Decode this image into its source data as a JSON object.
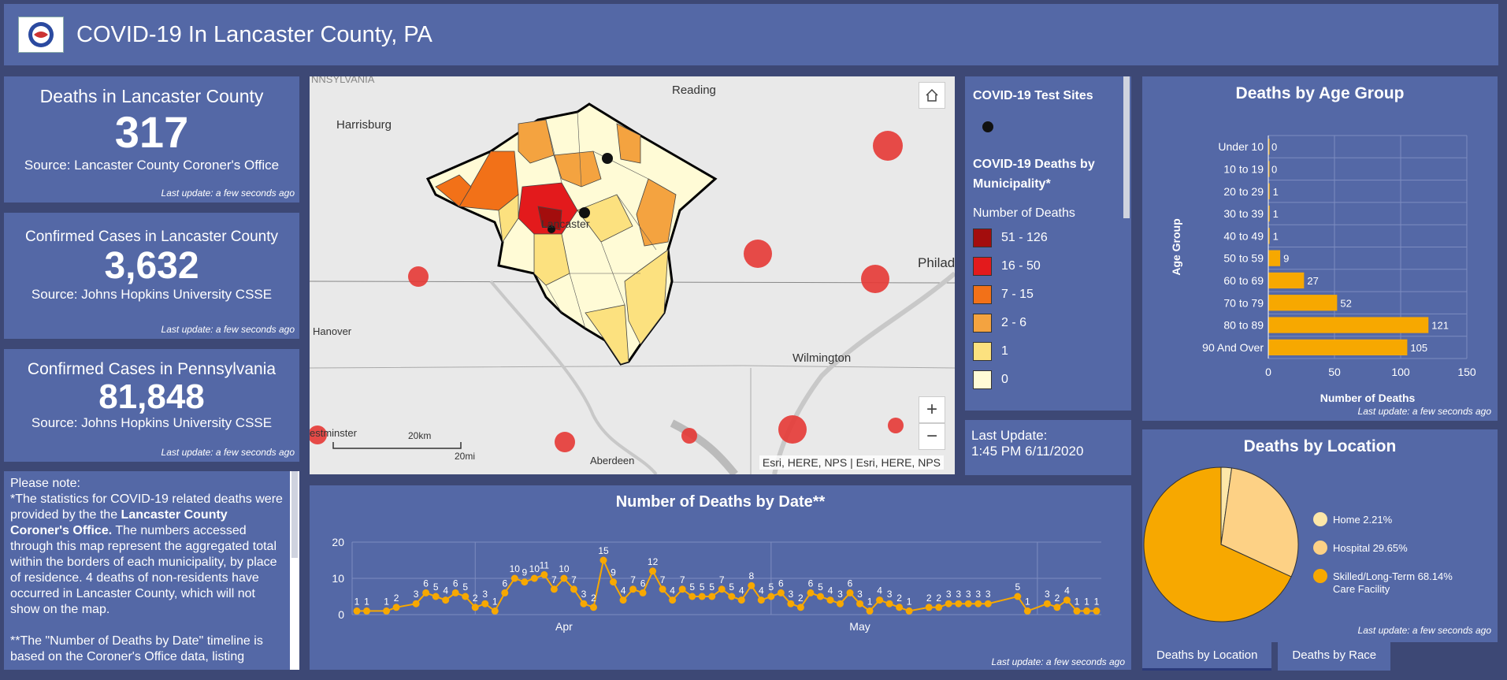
{
  "header": {
    "title": "COVID-19 In Lancaster County, PA"
  },
  "indicators": [
    {
      "title": "Deaths in Lancaster County",
      "value": "317",
      "source": "Source: Lancaster County Coroner's Office",
      "updated": "Last update: a few seconds ago"
    },
    {
      "title": "Confirmed Cases in Lancaster County",
      "value": "3,632",
      "source": "Source: Johns Hopkins University CSSE",
      "updated": "Last update: a few seconds ago"
    },
    {
      "title": "Confirmed Cases in Pennsylvania",
      "value": "81,848",
      "source": "Source: Johns Hopkins University CSSE",
      "updated": "Last update: a few seconds ago"
    }
  ],
  "note": {
    "line1": "Please note:",
    "p1a": "*The statistics for COVID-19 related deaths were provided by the the ",
    "p1b": "Lancaster County Coroner's Office.",
    "p1c": "   The numbers accessed through this map represent the aggregated total within the borders of each municipality, by place of residence.  4 deaths of non-residents have occurred in Lancaster County, which will not show on the map.",
    "p2": "**The \"Number of Deaths by Date\" timeline is based on the Coroner's Office data, listing"
  },
  "map": {
    "labels": [
      "NNSYLVANIA",
      "Reading",
      "Harrisburg",
      "Lancaster",
      "Hanover",
      "Wilmington",
      "Philad",
      "estminster",
      "Aberdeen"
    ],
    "scale_km": "20km",
    "scale_mi": "20mi",
    "attribution": "Esri, HERE, NPS | Esri, HERE, NPS",
    "zoom_in": "+",
    "zoom_out": "−"
  },
  "legend": {
    "test_sites": "COVID-19 Test Sites",
    "deaths_title": "COVID-19 Deaths by Municipality*",
    "subtitle": "Number of Deaths",
    "items": [
      {
        "label": "51 - 126",
        "color": "#a30d0d"
      },
      {
        "label": "16 - 50",
        "color": "#e31a1c"
      },
      {
        "label": "7 - 15",
        "color": "#f27118"
      },
      {
        "label": "2 - 6",
        "color": "#f4a340"
      },
      {
        "label": "1",
        "color": "#fce17f"
      },
      {
        "label": "0",
        "color": "#fffbd6"
      }
    ]
  },
  "last_update": {
    "label": "Last Update:",
    "value": "1:45 PM 6/11/2020"
  },
  "deaths_by_age": {
    "updated": "Last update: a few seconds ago",
    "chart_data": {
      "type": "bar",
      "title": "Deaths by Age Group",
      "xlabel": "Number of Deaths",
      "ylabel": "Age Group",
      "categories": [
        "Under 10",
        "10 to 19",
        "20 to 29",
        "30 to 39",
        "40 to 49",
        "50 to 59",
        "60 to 69",
        "70 to 79",
        "80 to 89",
        "90 And Over"
      ],
      "values": [
        0,
        0,
        1,
        1,
        1,
        9,
        27,
        52,
        121,
        105
      ],
      "xlim": [
        0,
        150
      ],
      "ticks": [
        0,
        50,
        100,
        150
      ]
    }
  },
  "deaths_by_location": {
    "updated": "Last update: a few seconds ago",
    "chart_data": {
      "type": "pie",
      "title": "Deaths by Location",
      "slices": [
        {
          "label": "Home",
          "pct": "2.21%",
          "value": 2.21,
          "color": "#fde7a8"
        },
        {
          "label": "Hospital",
          "pct": "29.65%",
          "value": 29.65,
          "color": "#fdd185"
        },
        {
          "label": "Skilled/Long-Term Care Facility",
          "pct": "68.14%",
          "value": 68.14,
          "color": "#f7a800"
        }
      ]
    }
  },
  "deaths_by_date": {
    "updated": "Last update: a few seconds ago",
    "chart_data": {
      "type": "line",
      "title": "Number of Deaths by Date**",
      "ylim": [
        0,
        20
      ],
      "yticks": [
        0,
        10,
        20
      ],
      "xticks": [
        {
          "label": "Apr",
          "index": 21
        },
        {
          "label": "May",
          "index": 51
        }
      ],
      "values": [
        1,
        1,
        null,
        1,
        2,
        null,
        3,
        6,
        5,
        4,
        6,
        5,
        2,
        3,
        1,
        6,
        10,
        9,
        10,
        11,
        7,
        10,
        7,
        3,
        2,
        15,
        9,
        4,
        7,
        6,
        12,
        7,
        4,
        7,
        5,
        5,
        5,
        7,
        5,
        4,
        8,
        4,
        5,
        6,
        3,
        2,
        6,
        5,
        4,
        3,
        6,
        3,
        1,
        4,
        3,
        2,
        1,
        null,
        2,
        2,
        3,
        3,
        3,
        3,
        3,
        null,
        null,
        5,
        1,
        null,
        3,
        2,
        4,
        1,
        1,
        1
      ]
    }
  },
  "tabs": [
    "Deaths by Location",
    "Deaths by Race"
  ],
  "colors": {
    "panel": "#5468a6",
    "background": "#3d4875",
    "accent": "#f7a800",
    "marker": "#e53935"
  }
}
